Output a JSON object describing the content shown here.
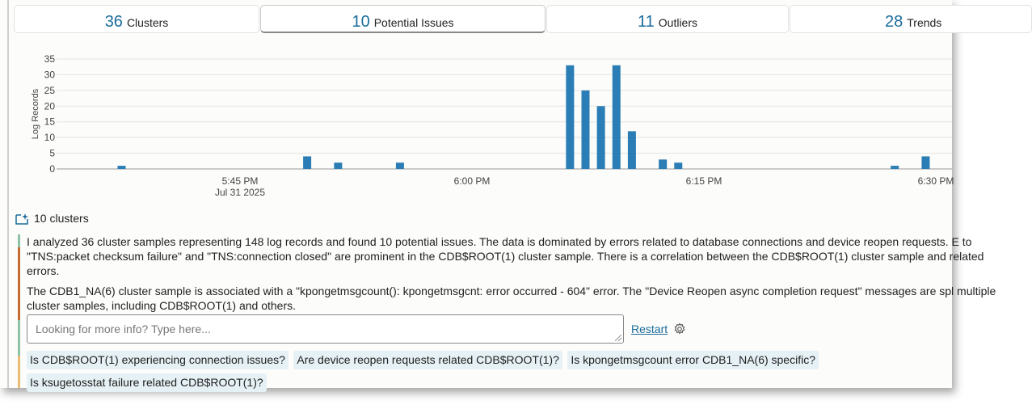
{
  "tabs": [
    {
      "count": "36",
      "label": "Clusters",
      "selected": false
    },
    {
      "count": "10",
      "label": "Potential Issues",
      "selected": true
    },
    {
      "count": "11",
      "label": "Outliers",
      "selected": false
    },
    {
      "count": "28",
      "label": "Trends",
      "selected": false
    }
  ],
  "chart_data": {
    "type": "bar",
    "ylabel": "Log Records",
    "ylim": [
      0,
      35
    ],
    "yticks": [
      0,
      5,
      10,
      15,
      20,
      25,
      30,
      35
    ],
    "xticks": [
      {
        "time": "5:45 PM",
        "sub": "Jul 31 2025"
      },
      {
        "time": "6:00 PM",
        "sub": ""
      },
      {
        "time": "6:15 PM",
        "sub": ""
      },
      {
        "time": "6:30 PM",
        "sub": ""
      }
    ],
    "grid": true,
    "color": "#2a7db5",
    "x": [
      "5:37 PM",
      "5:49 PM",
      "5:51 PM",
      "5:55 PM",
      "6:06 PM",
      "6:07 PM",
      "6:08 PM",
      "6:09 PM",
      "6:10 PM",
      "6:12 PM",
      "6:13 PM",
      "6:27 PM",
      "6:29 PM"
    ],
    "values": [
      1,
      4,
      2,
      2,
      33,
      25,
      20,
      33,
      12,
      3,
      2,
      1,
      4
    ]
  },
  "section": {
    "title": "10 clusters",
    "icon": "sparkle-chart-icon"
  },
  "summary": [
    "I analyzed 36 cluster samples representing 148 log records and found 10 potential issues. The data is dominated by errors related to database connections and device reopen requests. E to \"TNS:packet checksum failure\" and \"TNS:connection closed\" are prominent in the CDB$ROOT(1) cluster sample. There is a correlation between the CDB$ROOT(1) cluster sample and related errors.",
    "The CDB1_NA(6) cluster sample is associated with a \"kpongetmsgcount(): kpongetmsgcnt: error occurred - 604\" error. The \"Device Reopen async completion request\" messages are spl multiple cluster samples, including CDB$ROOT(1) and others."
  ],
  "input": {
    "placeholder": "Looking for more info? Type here...",
    "value": ""
  },
  "restart_label": "Restart",
  "suggestions": [
    "Is CDB$ROOT(1) experiencing connection issues?",
    "Are device reopen requests related CDB$ROOT(1)?",
    "Is kpongetmsgcount error CDB1_NA(6) specific?",
    "Is ksugetosstat failure related CDB$ROOT(1)?"
  ],
  "accent_colors": {
    "green": "#8fc1a6",
    "orange": "#c66b34",
    "yellow": "#e9bd73",
    "link": "#1a6c9c"
  }
}
